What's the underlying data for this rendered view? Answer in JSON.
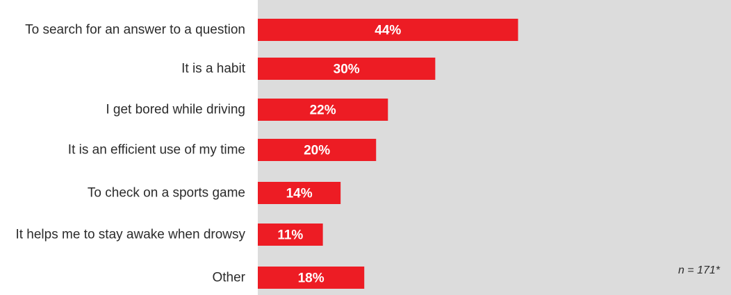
{
  "chart_data": {
    "type": "bar",
    "orientation": "horizontal",
    "categories": [
      "To search for an answer to a question",
      "It is a habit",
      "I get bored while driving",
      "It is an efficient use of my time",
      "To check on a sports game",
      "It helps me to stay awake when drowsy",
      "Other"
    ],
    "values": [
      44,
      30,
      22,
      20,
      14,
      11,
      18
    ],
    "value_labels": [
      "44%",
      "30%",
      "22%",
      "20%",
      "14%",
      "11%",
      "18%"
    ],
    "unit": "%",
    "xlim": [
      0,
      80
    ],
    "grid": false,
    "legend": "none",
    "bar_color": "#ed1c24",
    "plot_background": "#dcdcdc",
    "label_color": "#ffffff",
    "note": "n = 171*"
  }
}
